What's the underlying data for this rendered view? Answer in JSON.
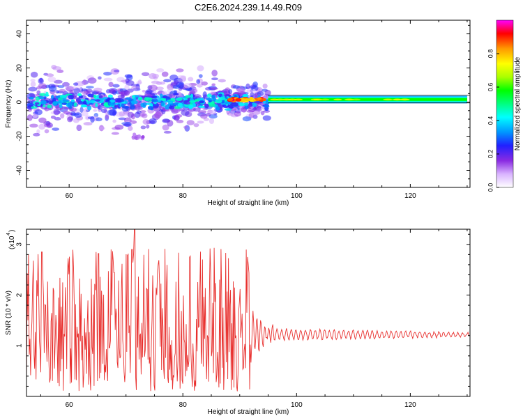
{
  "title": "C2E6.2024.239.14.49.R09",
  "chart_data": [
    {
      "type": "heatmap",
      "title": "C2E6.2024.239.14.49.R09",
      "xlabel": "Height of straight line (km)",
      "ylabel": "Frequency (Hz)",
      "xlim": [
        52.5,
        130.5
      ],
      "ylim": [
        -50,
        48
      ],
      "x_ticks": [
        60,
        80,
        100,
        120
      ],
      "y_ticks": [
        -40,
        -20,
        0,
        20,
        40
      ],
      "colorbar": {
        "label": "Normalized spectral amplitude",
        "range": [
          0,
          1
        ],
        "ticks": [
          0.0,
          0.2,
          0.4,
          0.6,
          0.8
        ]
      },
      "features": [
        {
          "x_range": [
            53,
            95
          ],
          "freq_center": 0.5,
          "freq_spread": 9,
          "amplitude": "scattered 0.1-0.5"
        },
        {
          "x_range": [
            88,
            95
          ],
          "freq_center": 1.5,
          "freq_spread": 3,
          "amplitude": "peak ~0.95"
        },
        {
          "x_range": [
            95,
            130
          ],
          "freq_center": 1.5,
          "freq_spread": 3,
          "amplitude": "steady ~0.4-0.6"
        },
        {
          "x_range": [
            71,
            73
          ],
          "freq_center": -20,
          "freq_spread": 3,
          "amplitude": "~0.1"
        }
      ]
    },
    {
      "type": "line",
      "xlabel": "Height of straight line (km)",
      "ylabel": "SNR (10 * v/v)",
      "y_scale_label": "(x10",
      "y_scale_exp": "4",
      "xlim": [
        52.5,
        130.5
      ],
      "ylim": [
        0,
        3.3
      ],
      "x_ticks": [
        60,
        80,
        100,
        120
      ],
      "y_ticks": [
        1,
        2,
        3
      ],
      "series": [
        {
          "color": "#e8302e",
          "segments": [
            {
              "x_range": [
                52.5,
                92
              ],
              "baseline": 1.2,
              "amplitude": 1.1,
              "max_peak": 3.3,
              "max_peak_x": 71.5
            },
            {
              "x_range": [
                92,
                96
              ],
              "baseline": 1.25,
              "amplitude": 0.4
            },
            {
              "x_range": [
                96,
                130.5
              ],
              "baseline": 1.22,
              "amplitude": 0.1
            }
          ]
        }
      ]
    }
  ]
}
